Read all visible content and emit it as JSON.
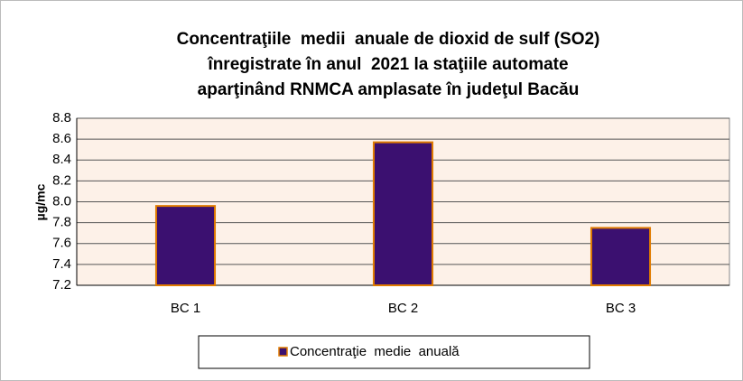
{
  "chart_data": {
    "type": "bar",
    "title": [
      "Concentraţiile  medii  anuale de dioxid de sulf (SO2)",
      "înregistrate în anul  2021 la staţiile automate",
      "aparţinând RNMCA amplasate în judeţul Bacău"
    ],
    "y_label": "µg/mc",
    "categories": [
      "BC 1",
      "BC 2",
      "BC 3"
    ],
    "series": [
      {
        "name": "Concentraţie  medie  anuală",
        "color": "#3b1070",
        "values": [
          7.96,
          8.57,
          7.75
        ]
      }
    ],
    "ylim": [
      7.2,
      8.8
    ],
    "yticks": [
      7.2,
      7.4,
      7.6,
      7.8,
      {
        "value": 8,
        "label": "8.0"
      },
      8.2,
      8.4,
      8.6,
      8.8
    ],
    "grid": true,
    "legend": "bottom"
  }
}
